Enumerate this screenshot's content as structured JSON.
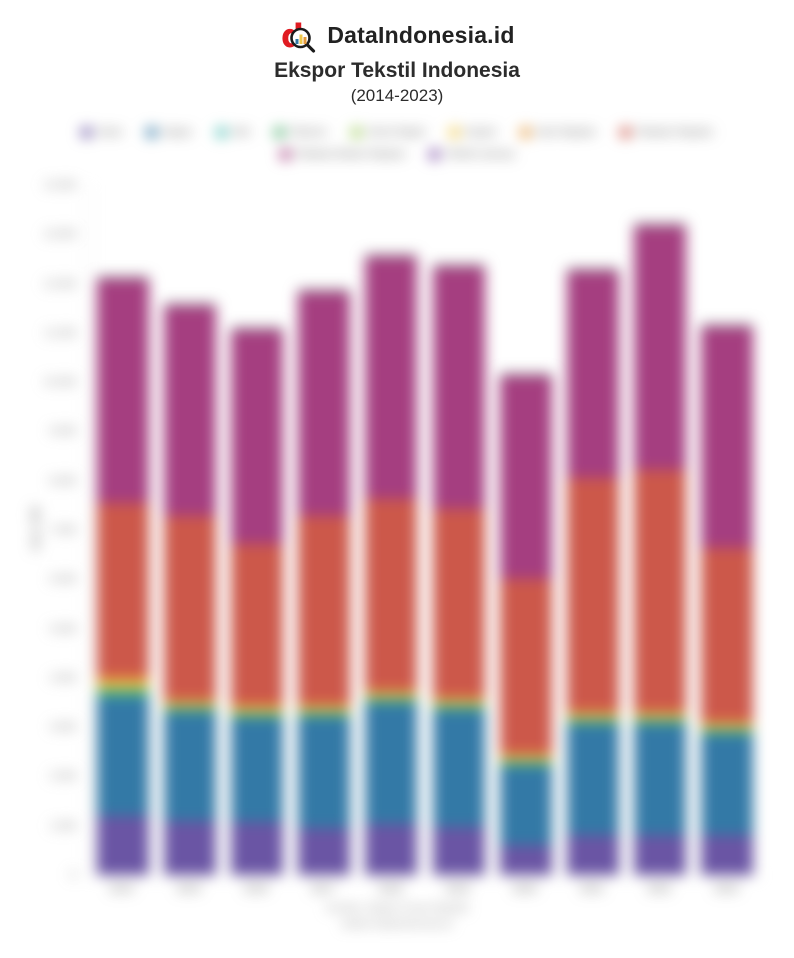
{
  "header": {
    "brand": "DataIndonesia.id",
    "title": "Ekspor Tekstil Indonesia",
    "subtitle": "(2014-2023)"
  },
  "colors": {
    "brand_red": "#E01B22",
    "magnifier_black": "#1b1b1b",
    "bar_cap": "rgba(58,58,64,0.55)"
  },
  "source": {
    "line1": "Sumber: Badan Pusat Statistik",
    "line2": "diolah DataIndonesia.id"
  },
  "chart_data": {
    "type": "bar",
    "stacked": true,
    "title": "Ekspor Tekstil Indonesia (2014-2023)",
    "categories": [
      "2014",
      "2015",
      "2016",
      "2017",
      "2018",
      "2019",
      "2020",
      "2021",
      "2022",
      "2023"
    ],
    "xlabel": "",
    "ylabel": "Juta US$",
    "unit": "Juta US$",
    "ylim": [
      0,
      14000
    ],
    "ytick_interval": 1000,
    "yticks": [
      "0",
      "1.000",
      "2.000",
      "3.000",
      "4.000",
      "5.000",
      "6.000",
      "7.000",
      "8.000",
      "9.000",
      "10.000",
      "11.000",
      "12.000",
      "13.000",
      "14.000"
    ],
    "grid": false,
    "legend_position": "top",
    "series": [
      {
        "name": "Sutra",
        "color": "#6A55A4",
        "values": [
          1200,
          1100,
          1080,
          950,
          1030,
          975,
          610,
          810,
          810,
          810
        ]
      },
      {
        "name": "Kapas",
        "color": "#3379A6",
        "values": [
          2420,
          2200,
          2100,
          2250,
          2460,
          2370,
          1600,
          2250,
          2250,
          2050
        ]
      },
      {
        "name": "Wol",
        "color": "#4BBFB4",
        "values": [
          30,
          20,
          20,
          20,
          20,
          20,
          20,
          20,
          20,
          20
        ]
      },
      {
        "name": "Filamen",
        "color": "#4CAF6E",
        "values": [
          120,
          80,
          85,
          80,
          80,
          80,
          80,
          80,
          80,
          80
        ]
      },
      {
        "name": "Serat Stapel",
        "color": "#9CCB5A",
        "values": [
          30,
          20,
          20,
          20,
          20,
          20,
          20,
          20,
          20,
          20
        ]
      },
      {
        "name": "Karpet",
        "color": "#EFC94C",
        "values": [
          120,
          80,
          85,
          80,
          80,
          80,
          80,
          80,
          80,
          80
        ]
      },
      {
        "name": "Kain Rajutan",
        "color": "#E59A3C",
        "values": [
          100,
          45,
          55,
          45,
          45,
          45,
          45,
          45,
          45,
          45
        ]
      },
      {
        "name": "Pakaian Rajutan",
        "color": "#CC584A",
        "values": [
          3530,
          3750,
          3270,
          3835,
          3900,
          3835,
          3550,
          4745,
          4910,
          3530
        ]
      },
      {
        "name": "Pakaian Bukan Rajutan",
        "color": "#A53E80",
        "values": [
          4540,
          4260,
          4340,
          4545,
          4900,
          4910,
          4120,
          4200,
          4950,
          4480
        ]
      },
      {
        "name": "Tekstil Lainnya",
        "color": "#7D4FA6",
        "values": [
          0,
          0,
          0,
          0,
          0,
          0,
          0,
          0,
          0,
          0
        ]
      }
    ],
    "totals": [
      12090,
      11555,
      11055,
      11825,
      12535,
      12335,
      10125,
      12250,
      13165,
      11115
    ]
  },
  "legend": {
    "rows": [
      [
        0,
        1,
        2,
        3,
        4,
        5,
        6,
        7
      ],
      [
        8,
        9
      ]
    ]
  }
}
